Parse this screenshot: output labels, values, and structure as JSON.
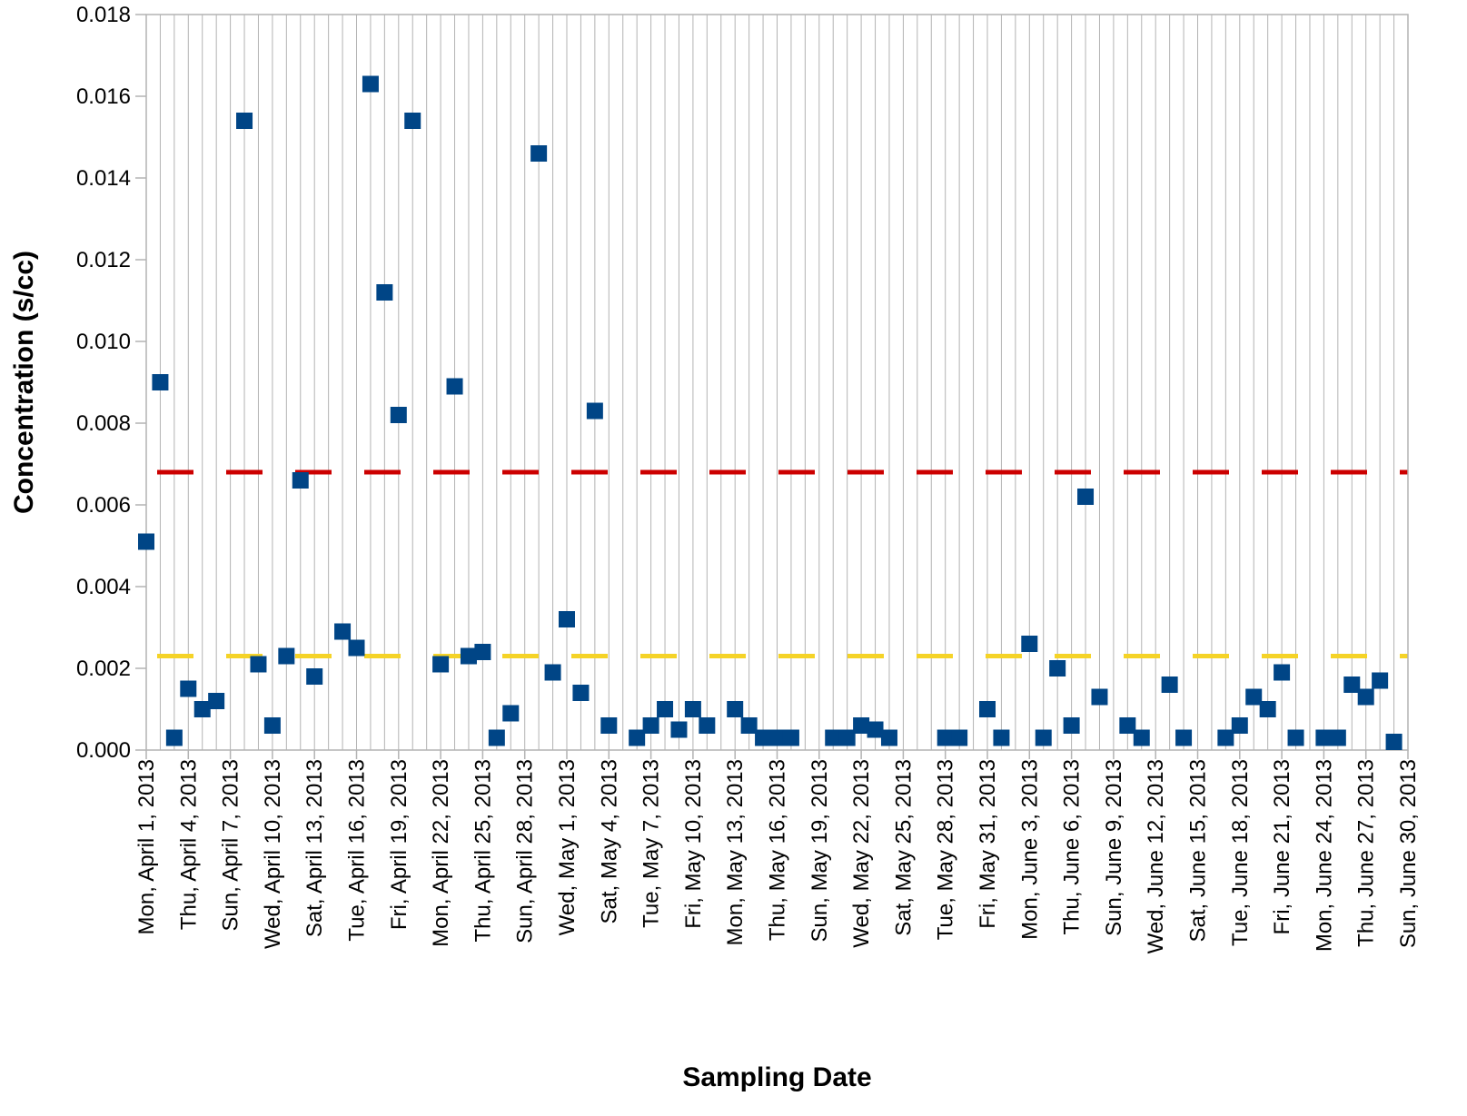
{
  "chart_data": {
    "type": "scatter",
    "xlabel": "Sampling Date",
    "ylabel": "Concentration (s/cc)",
    "x_range": [
      "2013-04-01",
      "2013-06-30"
    ],
    "ylim": [
      0,
      0.018
    ],
    "yticks": [
      "0.000",
      "0.002",
      "0.004",
      "0.006",
      "0.008",
      "0.010",
      "0.012",
      "0.014",
      "0.016",
      "0.018"
    ],
    "xticks": [
      {
        "date": "2013-04-01",
        "label": "Mon, April 1, 2013"
      },
      {
        "date": "2013-04-04",
        "label": "Thu, April 4, 2013"
      },
      {
        "date": "2013-04-07",
        "label": "Sun, April 7, 2013"
      },
      {
        "date": "2013-04-10",
        "label": "Wed, April 10, 2013"
      },
      {
        "date": "2013-04-13",
        "label": "Sat, April 13, 2013"
      },
      {
        "date": "2013-04-16",
        "label": "Tue, April 16, 2013"
      },
      {
        "date": "2013-04-19",
        "label": "Fri, April 19, 2013"
      },
      {
        "date": "2013-04-22",
        "label": "Mon, April 22, 2013"
      },
      {
        "date": "2013-04-25",
        "label": "Thu, April 25, 2013"
      },
      {
        "date": "2013-04-28",
        "label": "Sun, April 28, 2013"
      },
      {
        "date": "2013-05-01",
        "label": "Wed, May 1, 2013"
      },
      {
        "date": "2013-05-04",
        "label": "Sat, May 4, 2013"
      },
      {
        "date": "2013-05-07",
        "label": "Tue, May 7, 2013"
      },
      {
        "date": "2013-05-10",
        "label": "Fri, May 10, 2013"
      },
      {
        "date": "2013-05-13",
        "label": "Mon, May 13, 2013"
      },
      {
        "date": "2013-05-16",
        "label": "Thu, May 16, 2013"
      },
      {
        "date": "2013-05-19",
        "label": "Sun, May 19, 2013"
      },
      {
        "date": "2013-05-22",
        "label": "Wed, May 22, 2013"
      },
      {
        "date": "2013-05-25",
        "label": "Sat, May 25, 2013"
      },
      {
        "date": "2013-05-28",
        "label": "Tue, May 28, 2013"
      },
      {
        "date": "2013-05-31",
        "label": "Fri, May 31, 2013"
      },
      {
        "date": "2013-06-03",
        "label": "Mon, June 3, 2013"
      },
      {
        "date": "2013-06-06",
        "label": "Thu, June 6, 2013"
      },
      {
        "date": "2013-06-09",
        "label": "Sun, June 9, 2013"
      },
      {
        "date": "2013-06-12",
        "label": "Wed, June 12, 2013"
      },
      {
        "date": "2013-06-15",
        "label": "Sat, June 15, 2013"
      },
      {
        "date": "2013-06-18",
        "label": "Tue, June 18, 2013"
      },
      {
        "date": "2013-06-21",
        "label": "Fri, June 21, 2013"
      },
      {
        "date": "2013-06-24",
        "label": "Mon, June 24, 2013"
      },
      {
        "date": "2013-06-27",
        "label": "Thu, June 27, 2013"
      },
      {
        "date": "2013-06-30",
        "label": "Sun, June 30, 2013"
      }
    ],
    "grid": {
      "x": true,
      "y": false
    },
    "legend": "none",
    "reference_lines": [
      {
        "y": 0.0068,
        "color": "#cc0000",
        "style": "dashed"
      },
      {
        "y": 0.0023,
        "color": "#f5d327",
        "style": "dashed"
      }
    ],
    "series": [
      {
        "color": "#004586",
        "marker": "square",
        "points": [
          {
            "x": "2013-04-01",
            "y": 0.0051
          },
          {
            "x": "2013-04-02",
            "y": 0.009
          },
          {
            "x": "2013-04-03",
            "y": 0.0003
          },
          {
            "x": "2013-04-04",
            "y": 0.0015
          },
          {
            "x": "2013-04-05",
            "y": 0.001
          },
          {
            "x": "2013-04-06",
            "y": 0.0012
          },
          {
            "x": "2013-04-08",
            "y": 0.0154
          },
          {
            "x": "2013-04-09",
            "y": 0.0021
          },
          {
            "x": "2013-04-10",
            "y": 0.0006
          },
          {
            "x": "2013-04-11",
            "y": 0.0023
          },
          {
            "x": "2013-04-12",
            "y": 0.0066
          },
          {
            "x": "2013-04-13",
            "y": 0.0018
          },
          {
            "x": "2013-04-15",
            "y": 0.0029
          },
          {
            "x": "2013-04-16",
            "y": 0.0025
          },
          {
            "x": "2013-04-17",
            "y": 0.0163
          },
          {
            "x": "2013-04-18",
            "y": 0.0112
          },
          {
            "x": "2013-04-19",
            "y": 0.0082
          },
          {
            "x": "2013-04-20",
            "y": 0.0154
          },
          {
            "x": "2013-04-22",
            "y": 0.0021
          },
          {
            "x": "2013-04-23",
            "y": 0.0089
          },
          {
            "x": "2013-04-24",
            "y": 0.0023
          },
          {
            "x": "2013-04-25",
            "y": 0.0024
          },
          {
            "x": "2013-04-26",
            "y": 0.0003
          },
          {
            "x": "2013-04-27",
            "y": 0.0009
          },
          {
            "x": "2013-04-29",
            "y": 0.0146
          },
          {
            "x": "2013-04-30",
            "y": 0.0019
          },
          {
            "x": "2013-05-01",
            "y": 0.0032
          },
          {
            "x": "2013-05-02",
            "y": 0.0014
          },
          {
            "x": "2013-05-03",
            "y": 0.0083
          },
          {
            "x": "2013-05-04",
            "y": 0.0006
          },
          {
            "x": "2013-05-06",
            "y": 0.0003
          },
          {
            "x": "2013-05-07",
            "y": 0.0006
          },
          {
            "x": "2013-05-08",
            "y": 0.001
          },
          {
            "x": "2013-05-09",
            "y": 0.0005
          },
          {
            "x": "2013-05-10",
            "y": 0.001
          },
          {
            "x": "2013-05-11",
            "y": 0.0006
          },
          {
            "x": "2013-05-13",
            "y": 0.001
          },
          {
            "x": "2013-05-14",
            "y": 0.0006
          },
          {
            "x": "2013-05-15",
            "y": 0.0003
          },
          {
            "x": "2013-05-16",
            "y": 0.0003
          },
          {
            "x": "2013-05-17",
            "y": 0.0003
          },
          {
            "x": "2013-05-20",
            "y": 0.0003
          },
          {
            "x": "2013-05-21",
            "y": 0.0003
          },
          {
            "x": "2013-05-22",
            "y": 0.0006
          },
          {
            "x": "2013-05-23",
            "y": 0.0005
          },
          {
            "x": "2013-05-24",
            "y": 0.0003
          },
          {
            "x": "2013-05-28",
            "y": 0.0003
          },
          {
            "x": "2013-05-29",
            "y": 0.0003
          },
          {
            "x": "2013-05-31",
            "y": 0.001
          },
          {
            "x": "2013-06-01",
            "y": 0.0003
          },
          {
            "x": "2013-06-03",
            "y": 0.0026
          },
          {
            "x": "2013-06-04",
            "y": 0.0003
          },
          {
            "x": "2013-06-05",
            "y": 0.002
          },
          {
            "x": "2013-06-06",
            "y": 0.0006
          },
          {
            "x": "2013-06-07",
            "y": 0.0062
          },
          {
            "x": "2013-06-08",
            "y": 0.0013
          },
          {
            "x": "2013-06-10",
            "y": 0.0006
          },
          {
            "x": "2013-06-11",
            "y": 0.0003
          },
          {
            "x": "2013-06-13",
            "y": 0.0016
          },
          {
            "x": "2013-06-14",
            "y": 0.0003
          },
          {
            "x": "2013-06-17",
            "y": 0.0003
          },
          {
            "x": "2013-06-18",
            "y": 0.0006
          },
          {
            "x": "2013-06-19",
            "y": 0.0013
          },
          {
            "x": "2013-06-20",
            "y": 0.001
          },
          {
            "x": "2013-06-21",
            "y": 0.0019
          },
          {
            "x": "2013-06-22",
            "y": 0.0003
          },
          {
            "x": "2013-06-24",
            "y": 0.0003
          },
          {
            "x": "2013-06-25",
            "y": 0.0003
          },
          {
            "x": "2013-06-26",
            "y": 0.0016
          },
          {
            "x": "2013-06-27",
            "y": 0.0013
          },
          {
            "x": "2013-06-28",
            "y": 0.0017
          },
          {
            "x": "2013-06-29",
            "y": 0.0002
          }
        ]
      }
    ]
  }
}
